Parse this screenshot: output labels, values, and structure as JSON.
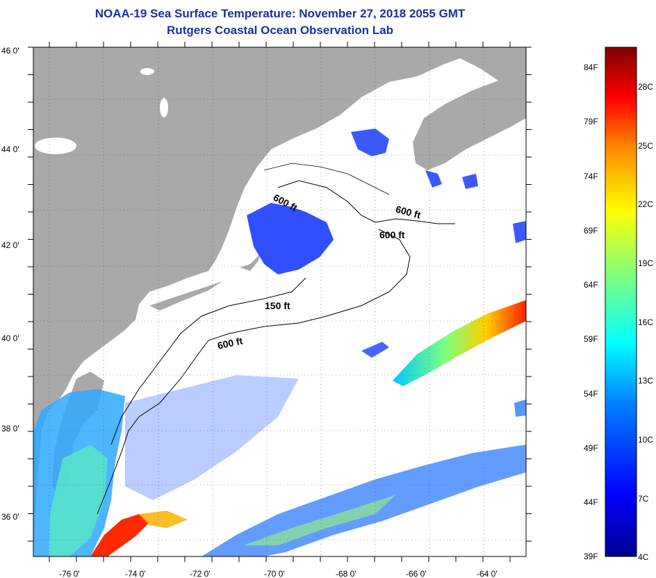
{
  "title_line1": "NOAA-19 Sea Surface Temperature:  November 27, 2018 2055 GMT",
  "title_line2": "Rutgers Coastal Ocean Observation Lab",
  "y_axis_labels": [
    "46 0'",
    "44 0'",
    "42 0'",
    "40 0'",
    "38 0'",
    "36 0'"
  ],
  "x_axis_labels": [
    "-76 0'",
    "-74 0'",
    "-72 0'",
    "-70 0'",
    "-68 0'",
    "-66 0'",
    "-64 0'"
  ],
  "contour_labels": [
    "600 ft",
    "600 ft",
    "600 ft",
    "150 ft",
    "600 ft"
  ],
  "colorbar": {
    "fahrenheit": [
      "84F",
      "79F",
      "74F",
      "69F",
      "64F",
      "59F",
      "54F",
      "49F",
      "44F",
      "39F"
    ],
    "celsius": [
      "28C",
      "25C",
      "22C",
      "19C",
      "16C",
      "13C",
      "10C",
      "7C",
      "4C"
    ]
  },
  "colors": {
    "land": "#a9a9a9",
    "title": "#1c2fa0",
    "scale": [
      "#7f0000",
      "#ff0000",
      "#ff8c00",
      "#ffff00",
      "#7fff7f",
      "#00ffff",
      "#0080ff",
      "#0000ff",
      "#00008f"
    ]
  }
}
